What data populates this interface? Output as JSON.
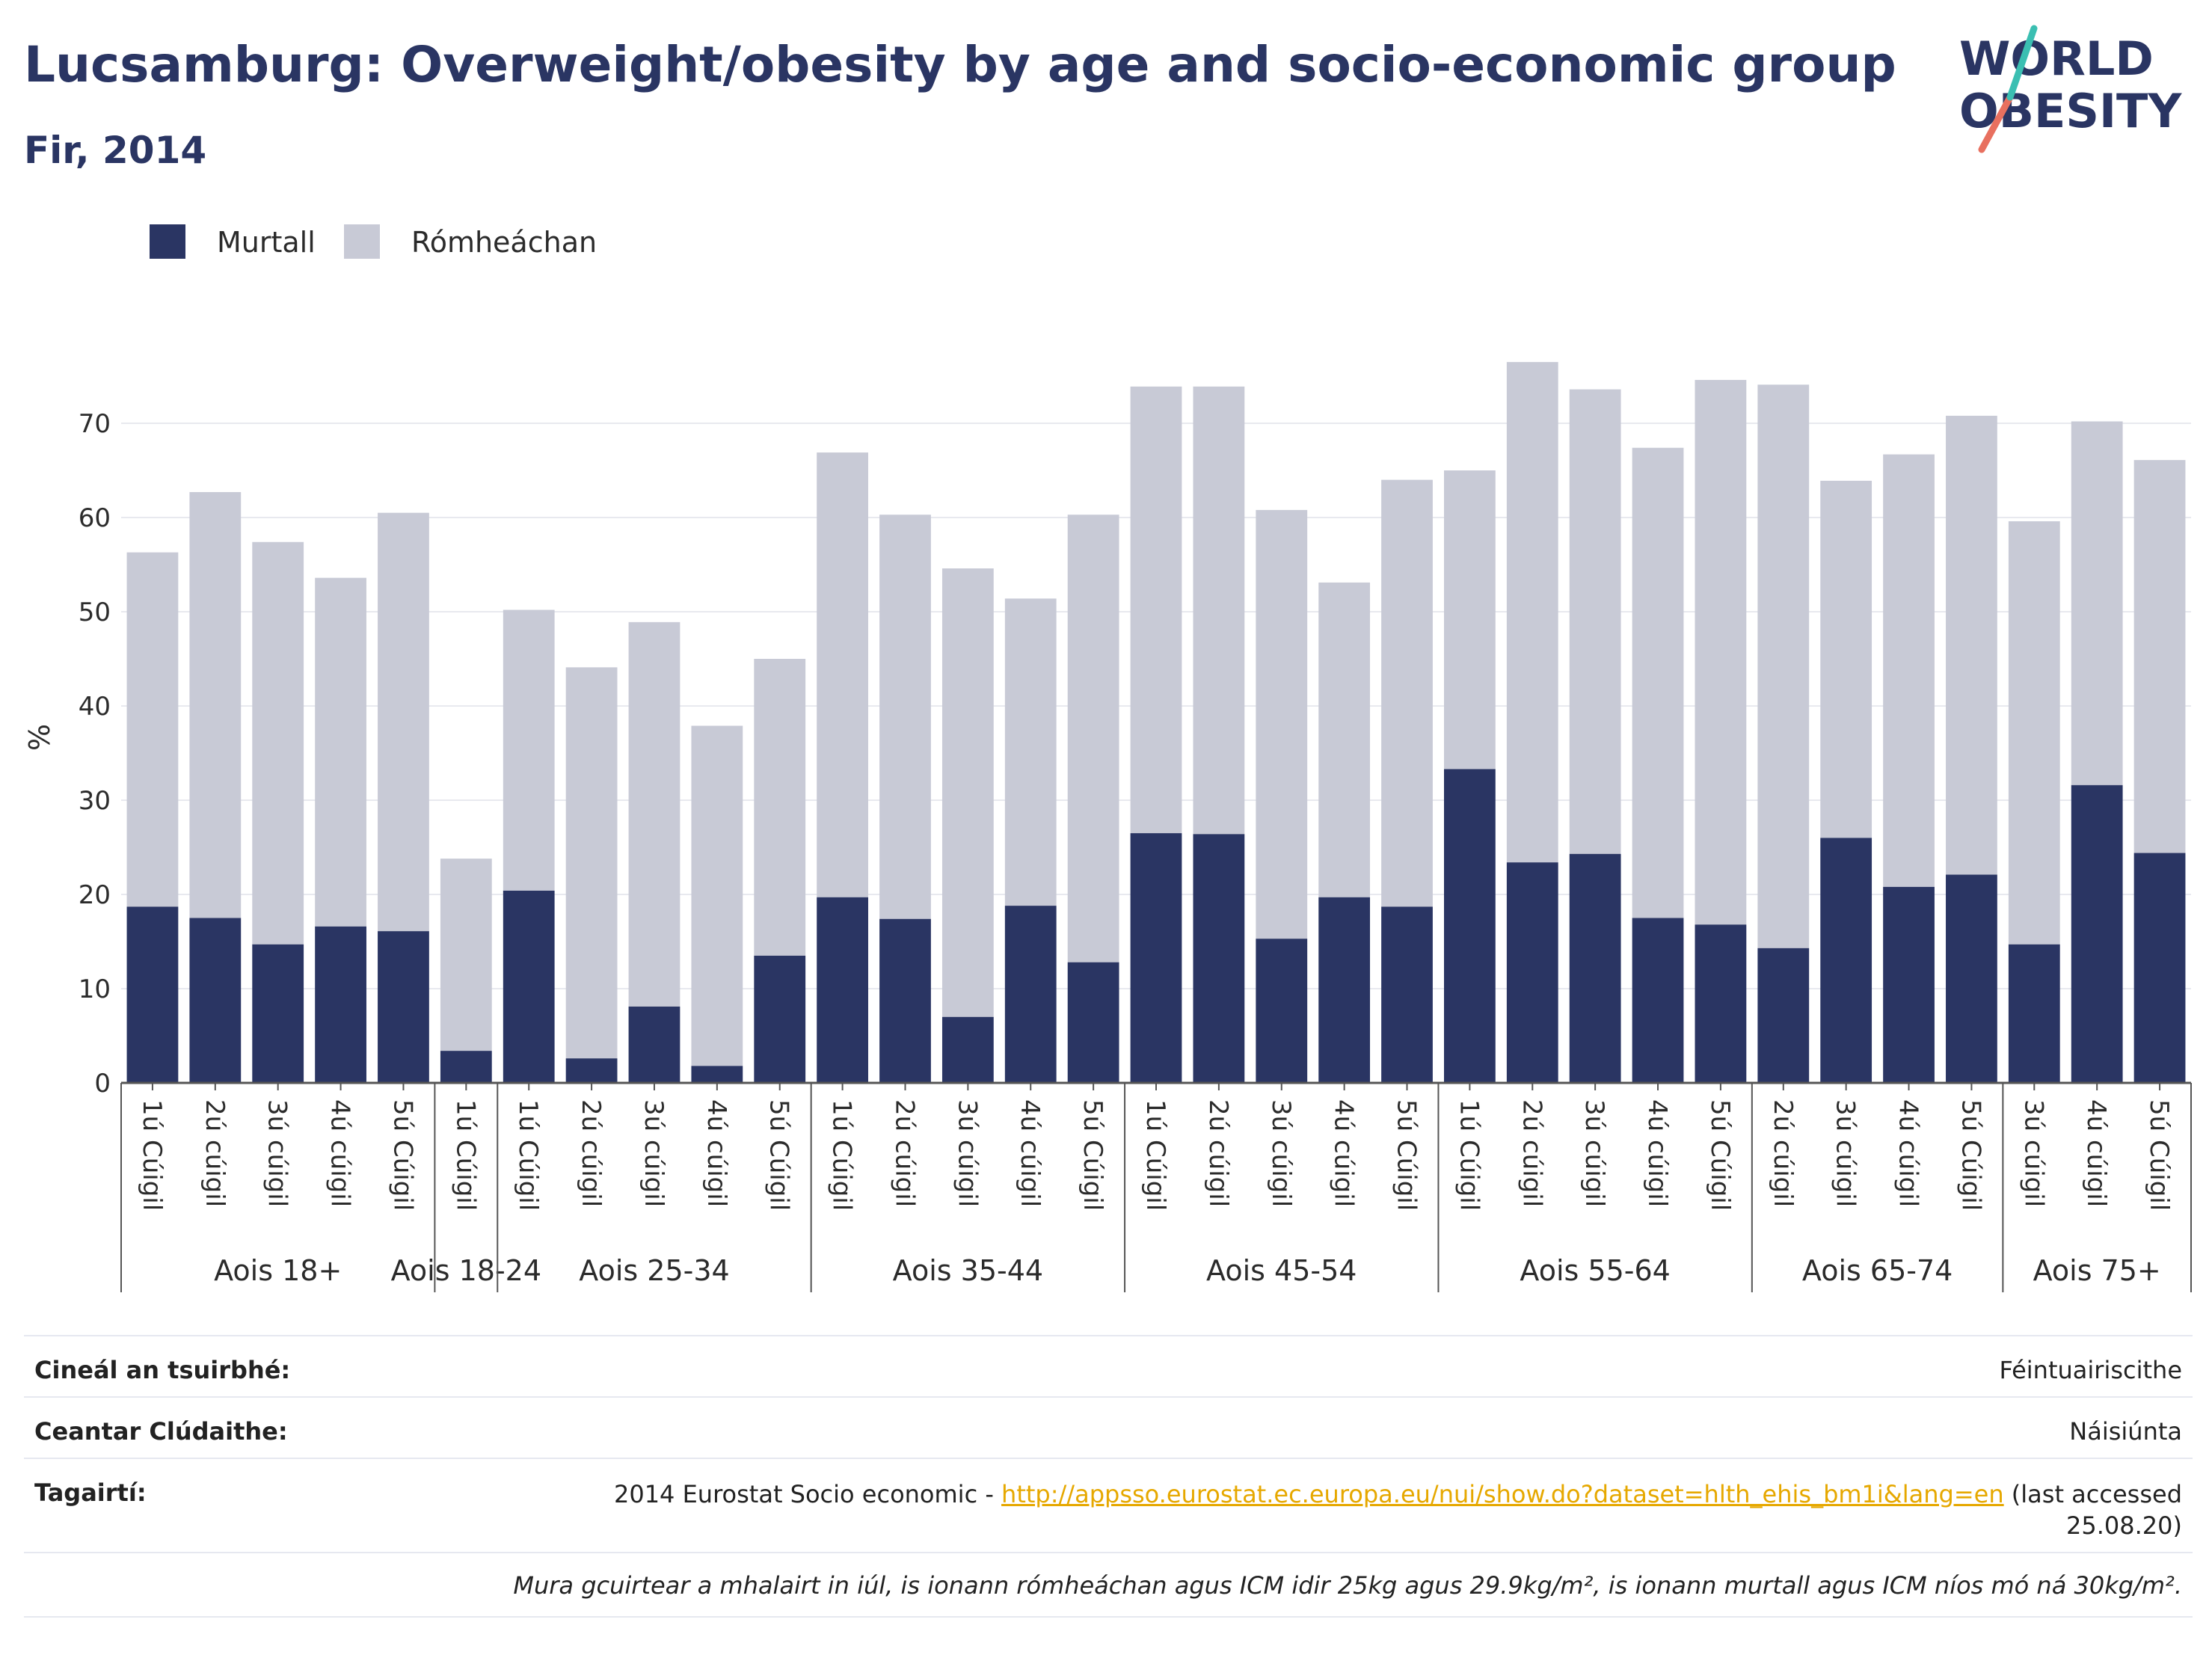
{
  "header": {
    "title": "Lucsamburg: Overweight/obesity by age and socio-economic group",
    "subtitle": "Fir, 2014"
  },
  "logo": {
    "line1": "WORLD",
    "line2": "OBESITY",
    "colors": {
      "navy": "#2a3563",
      "teal": "#3bbfb2",
      "coral": "#e8705f"
    }
  },
  "legend": {
    "items": [
      {
        "label": "Murtall",
        "color": "#2a3563"
      },
      {
        "label": "Rómheáchan",
        "color": "#c8cad6"
      }
    ]
  },
  "chart_data": {
    "type": "bar",
    "stacked": true,
    "ylabel": "%",
    "ylim": [
      0,
      80
    ],
    "yticks": [
      0,
      10,
      20,
      30,
      40,
      50,
      60,
      70
    ],
    "grid": true,
    "legend_position": "top-left",
    "categories": [
      "1ú Cúigil",
      "2ú cúigil",
      "3ú cúigil",
      "4ú cúigil",
      "5ú Cúigil",
      "1ú Cúigil",
      "1ú Cúigil",
      "2ú cúigil",
      "3ú cúigil",
      "4ú cúigil",
      "5ú Cúigil",
      "1ú Cúigil",
      "2ú cúigil",
      "3ú cúigil",
      "4ú cúigil",
      "5ú Cúigil",
      "1ú Cúigil",
      "2ú cúigil",
      "3ú cúigil",
      "4ú cúigil",
      "5ú Cúigil",
      "1ú Cúigil",
      "2ú cúigil",
      "3ú cúigil",
      "4ú cúigil",
      "5ú Cúigil",
      "2ú cúigil",
      "3ú cúigil",
      "4ú cúigil",
      "5ú Cúigil",
      "3ú cúigil",
      "4ú cúigil",
      "5ú Cúigil"
    ],
    "groups": [
      {
        "label": "Aois 18+",
        "start": 0,
        "count": 5
      },
      {
        "label": "Aois 18-24",
        "start": 5,
        "count": 1
      },
      {
        "label": "Aois 25-34",
        "start": 6,
        "count": 5
      },
      {
        "label": "Aois 35-44",
        "start": 11,
        "count": 5
      },
      {
        "label": "Aois 45-54",
        "start": 16,
        "count": 5
      },
      {
        "label": "Aois 55-64",
        "start": 21,
        "count": 5
      },
      {
        "label": "Aois 65-74",
        "start": 26,
        "count": 4
      },
      {
        "label": "Aois 75+",
        "start": 30,
        "count": 3
      }
    ],
    "series": [
      {
        "name": "Murtall",
        "color": "#2a3563",
        "values": [
          18.7,
          17.5,
          14.7,
          16.6,
          16.1,
          3.4,
          20.4,
          2.6,
          8.1,
          1.8,
          13.5,
          19.7,
          17.4,
          7.0,
          18.8,
          12.8,
          26.5,
          26.4,
          15.3,
          19.7,
          18.7,
          33.3,
          23.4,
          24.3,
          17.5,
          16.8,
          14.3,
          26.0,
          20.8,
          22.1,
          14.7,
          31.6,
          24.4
        ]
      },
      {
        "name": "Rómheáchan",
        "color": "#c8cad6",
        "values": [
          37.6,
          45.2,
          42.7,
          37.0,
          44.4,
          20.4,
          29.8,
          41.5,
          40.8,
          36.1,
          31.5,
          47.2,
          42.9,
          47.6,
          32.6,
          47.5,
          47.4,
          47.5,
          45.5,
          33.4,
          45.3,
          31.7,
          53.1,
          49.3,
          49.9,
          57.8,
          59.8,
          37.9,
          45.9,
          48.7,
          44.9,
          38.6,
          41.7
        ]
      }
    ]
  },
  "info": {
    "rows": [
      {
        "key": "Cineál an tsuirbhé:",
        "value": "Féintuairiscithe"
      },
      {
        "key": "Ceantar Clúdaithe:",
        "value": "Náisiúnta"
      },
      {
        "key": "Tagairtí:",
        "ref_prefix": "2014 Eurostat Socio economic - ",
        "ref_link": "http://appsso.eurostat.ec.europa.eu/nui/show.do?dataset=hlth_ehis_bm1i&lang=en",
        "ref_suffix_1": " (last accessed",
        "ref_suffix_2": "25.08.20)"
      }
    ],
    "note": "Mura gcuirtear a mhalairt in iúl, is ionann rómheáchan agus ICM idir 25kg agus 29.9kg/m², is ionann murtall agus ICM níos mó ná 30kg/m²."
  }
}
